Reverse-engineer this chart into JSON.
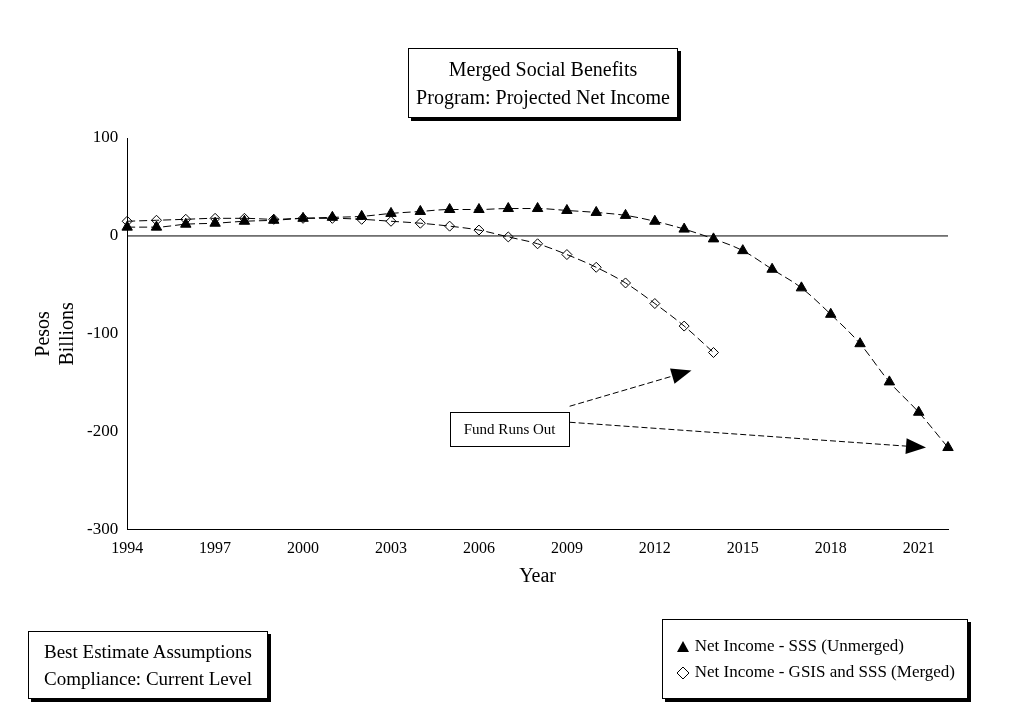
{
  "chart_data": {
    "type": "line",
    "title": "Merged Social Benefits Program: Projected Net Income",
    "xlabel": "Year",
    "ylabel": "Pesos Billions",
    "categories": [
      "1994",
      null,
      null,
      "1997",
      null,
      null,
      "2000",
      null,
      null,
      "2003",
      null,
      null,
      "2006",
      null,
      null,
      "2009",
      null,
      null,
      "2012",
      null,
      null,
      "2015",
      null,
      null,
      "2018",
      null,
      null,
      "2021",
      null
    ],
    "series": [
      {
        "name": "Net Income - SSS (Unmerged)",
        "color": "#000000",
        "marker": "triangle",
        "line_style": "dashed",
        "values": [
          9,
          9,
          12,
          13,
          15,
          16,
          18,
          19,
          20,
          23,
          25,
          27,
          27,
          28,
          28,
          26,
          24,
          21,
          15,
          7,
          -3,
          -15,
          -34,
          -53,
          -80,
          -110,
          -149,
          -180,
          -216
        ]
      },
      {
        "name": "Net Income - GSIS and SSS (Merged)",
        "color": "#000000",
        "marker": "diamond",
        "line_style": "dashed",
        "values": [
          15,
          16,
          17,
          18,
          18,
          17,
          18,
          18,
          17,
          15,
          13,
          10,
          6,
          -1,
          -8,
          -19,
          -32,
          -48,
          -69,
          -92,
          -119,
          null,
          null,
          null,
          null,
          null,
          null,
          null,
          null
        ]
      }
    ],
    "ylim": [
      -300,
      100
    ],
    "yticks": [
      -300,
      -200,
      -100,
      0,
      100
    ],
    "grid": false,
    "legend": "bottom right",
    "ref_lines": [
      {
        "axis": "y",
        "value": 0
      }
    ],
    "annotations": [
      "Fund Runs Out",
      "Best Estimate Assumptions Compliance: Current Level"
    ]
  }
}
